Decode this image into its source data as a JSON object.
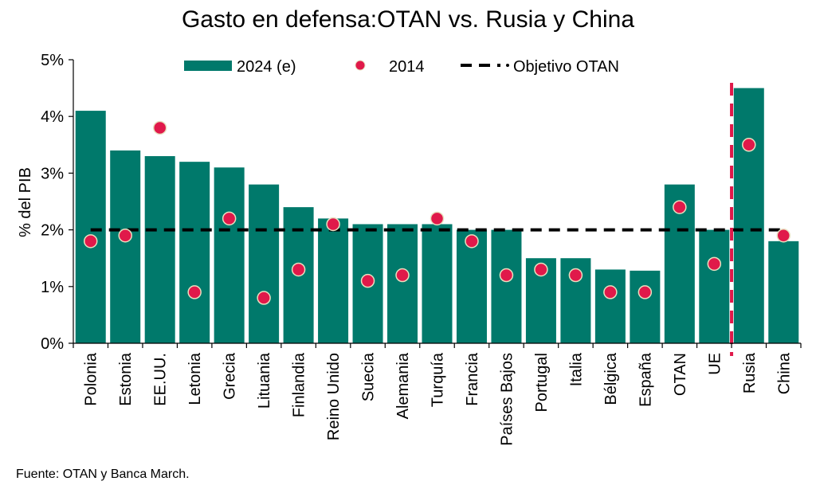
{
  "chart_data": {
    "type": "bar",
    "title": "Gasto en defensa:OTAN vs. Rusia y China",
    "xlabel": "",
    "ylabel": "% del PIB",
    "ylim": [
      0,
      5
    ],
    "yticks": [
      0,
      1,
      2,
      3,
      4,
      5
    ],
    "ytick_labels": [
      "0%",
      "1%",
      "2%",
      "3%",
      "4%",
      "5%"
    ],
    "grid": false,
    "legend_position": "top",
    "categories": [
      "Polonia",
      "Estonia",
      "EE.UU.",
      "Letonia",
      "Grecia",
      "Lituania",
      "Finlandia",
      "Reino Unido",
      "Suecia",
      "Alemania",
      "Turquía",
      "Francia",
      "Países Bajos",
      "Portugal",
      "Italia",
      "Bélgica",
      "España",
      "OTAN",
      "UE",
      "Rusia",
      "China"
    ],
    "series": [
      {
        "name": "2024 (e)",
        "kind": "bar",
        "color": "#00796B",
        "values": [
          4.1,
          3.4,
          3.3,
          3.2,
          3.1,
          2.8,
          2.4,
          2.2,
          2.1,
          2.1,
          2.1,
          2.0,
          2.0,
          1.5,
          1.5,
          1.3,
          1.28,
          2.8,
          2.0,
          4.5,
          1.8
        ]
      },
      {
        "name": "2014",
        "kind": "marker",
        "color": "#E0194A",
        "values": [
          1.8,
          1.9,
          3.8,
          0.9,
          2.2,
          0.8,
          1.3,
          2.1,
          1.1,
          1.2,
          2.2,
          1.8,
          1.2,
          1.3,
          1.2,
          0.9,
          0.9,
          2.4,
          1.4,
          3.5,
          1.9
        ]
      },
      {
        "name": "Objetivo OTAN",
        "kind": "reference-line",
        "color": "#000000",
        "value": 2.0
      }
    ],
    "separator": {
      "after_category": "UE",
      "color": "#E0194A",
      "style": "dashed"
    },
    "source": "Fuente: OTAN y Banca March."
  }
}
